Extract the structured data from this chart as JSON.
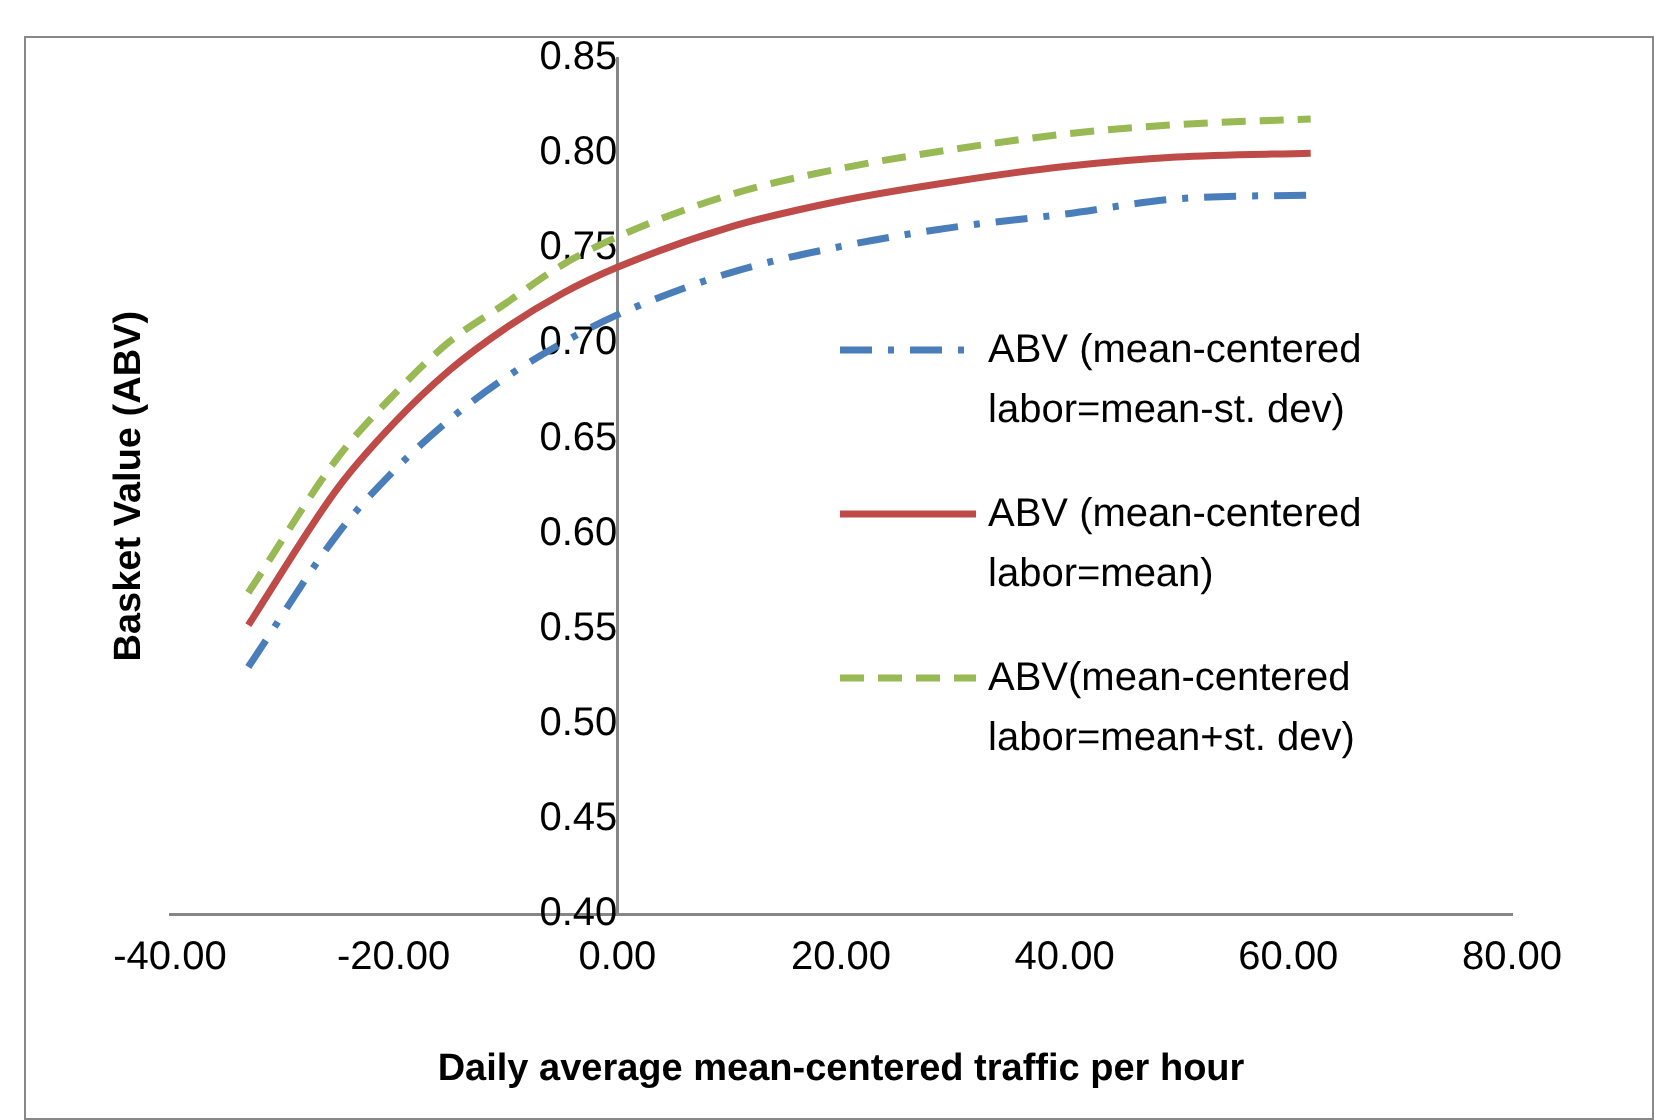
{
  "chart_data": {
    "type": "line",
    "xlabel": "Daily average mean-centered traffic per hour",
    "ylabel": "Basket Value (ABV)",
    "x": [
      -33,
      -25,
      -20,
      -15,
      -10,
      -5,
      0,
      10,
      20,
      30,
      40,
      50,
      62
    ],
    "series": [
      {
        "name": "ABV (mean-centered labor=mean-st. dev)",
        "color": "#4a7ebb",
        "line_style": "dashdot",
        "values": [
          0.53,
          0.6,
          0.633,
          0.66,
          0.682,
          0.7,
          0.715,
          0.737,
          0.751,
          0.761,
          0.768,
          0.776,
          0.778
        ]
      },
      {
        "name": "ABV (mean-centered labor=mean)",
        "color": "#be4b48",
        "line_style": "solid",
        "values": [
          0.552,
          0.624,
          0.658,
          0.686,
          0.708,
          0.726,
          0.74,
          0.761,
          0.775,
          0.785,
          0.793,
          0.798,
          0.8
        ]
      },
      {
        "name": "ABV(mean-centered labor=mean+st. dev)",
        "color": "#98b954",
        "line_style": "dashed",
        "values": [
          0.569,
          0.64,
          0.673,
          0.701,
          0.721,
          0.741,
          0.756,
          0.778,
          0.792,
          0.802,
          0.81,
          0.815,
          0.818
        ]
      }
    ],
    "xlim": [
      -40,
      80
    ],
    "xticks": [
      {
        "value": -40,
        "label": "-40.00"
      },
      {
        "value": -20,
        "label": "-20.00"
      },
      {
        "value": 0,
        "label": "0.00"
      },
      {
        "value": 20,
        "label": "20.00"
      },
      {
        "value": 40,
        "label": "40.00"
      },
      {
        "value": 60,
        "label": "60.00"
      },
      {
        "value": 80,
        "label": "80.00"
      }
    ],
    "ylim": [
      0.4,
      0.85
    ],
    "yticks": [
      {
        "value": 0.4,
        "label": "0.40"
      },
      {
        "value": 0.45,
        "label": "0.45"
      },
      {
        "value": 0.5,
        "label": "0.50"
      },
      {
        "value": 0.55,
        "label": "0.55"
      },
      {
        "value": 0.6,
        "label": "0.60"
      },
      {
        "value": 0.65,
        "label": "0.65"
      },
      {
        "value": 0.7,
        "label": "0.70"
      },
      {
        "value": 0.75,
        "label": "0.75"
      },
      {
        "value": 0.8,
        "label": "0.80"
      },
      {
        "value": 0.85,
        "label": "0.85"
      }
    ],
    "grid": false,
    "legend": "right",
    "marker": "none"
  }
}
